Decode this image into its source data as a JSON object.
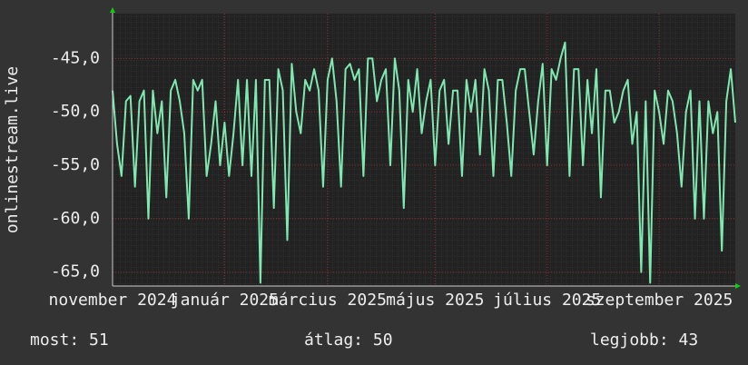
{
  "chart_data": {
    "type": "line",
    "y_label": "onlinestream.live",
    "color": "#7fe8b0",
    "grid": true,
    "ylim": [
      -66.3,
      -40.8
    ],
    "yticks": [
      {
        "value": -45,
        "label": "-45,0"
      },
      {
        "value": -50,
        "label": "-50,0"
      },
      {
        "value": -55,
        "label": "-55,0"
      },
      {
        "value": -60,
        "label": "-60,0"
      },
      {
        "value": -65,
        "label": "-65,0"
      }
    ],
    "categories": [
      "november 2024",
      null,
      null,
      null,
      null,
      null,
      null,
      null,
      null,
      null,
      null,
      null,
      null,
      null,
      null,
      null,
      null,
      null,
      null,
      null,
      null,
      null,
      null,
      null,
      null,
      "január 2025",
      null,
      null,
      null,
      null,
      null,
      null,
      null,
      null,
      null,
      null,
      null,
      null,
      null,
      null,
      null,
      null,
      null,
      null,
      null,
      null,
      null,
      null,
      "március 2025",
      null,
      null,
      null,
      null,
      null,
      null,
      null,
      null,
      null,
      null,
      null,
      null,
      null,
      null,
      null,
      null,
      null,
      null,
      null,
      null,
      null,
      null,
      null,
      "május 2025",
      null,
      null,
      null,
      null,
      null,
      null,
      null,
      null,
      null,
      null,
      null,
      null,
      null,
      null,
      null,
      null,
      null,
      null,
      null,
      null,
      null,
      null,
      null,
      null,
      "július 2025",
      null,
      null,
      null,
      null,
      null,
      null,
      null,
      null,
      null,
      null,
      null,
      null,
      null,
      null,
      null,
      null,
      null,
      null,
      null,
      null,
      null,
      null,
      null,
      null,
      "szeptember 2025",
      null,
      null,
      null,
      null,
      null,
      null,
      null,
      null,
      null,
      null,
      null,
      null,
      null,
      null,
      null,
      null,
      null
    ],
    "values": [
      -48,
      -53,
      -56,
      -49,
      -48.5,
      -57,
      -49,
      -48,
      -60,
      -48,
      -52,
      -49,
      -58,
      -48,
      -47,
      -49,
      -52,
      -60,
      -47,
      -48,
      -47,
      -56,
      -53,
      -49,
      -55,
      -51,
      -56,
      -52,
      -47,
      -55,
      -47,
      -56,
      -47,
      -66,
      -47,
      -47,
      -59,
      -46,
      -48,
      -62,
      -45.5,
      -50,
      -52,
      -47,
      -48,
      -46,
      -48,
      -57,
      -47,
      -45,
      -49,
      -57,
      -46,
      -45.5,
      -47,
      -46,
      -56,
      -45,
      -45,
      -49,
      -47,
      -46,
      -55,
      -45,
      -48,
      -59,
      -47,
      -50,
      -46,
      -52,
      -49,
      -47,
      -55,
      -48,
      -47,
      -53,
      -48,
      -48,
      -56,
      -47,
      -50,
      -47,
      -54,
      -46,
      -48,
      -56,
      -47,
      -47,
      -51,
      -56,
      -48,
      -46,
      -46,
      -50,
      -54,
      -49,
      -45.5,
      -55,
      -46,
      -47,
      -45,
      -43.5,
      -56,
      -46,
      -46,
      -55,
      -47,
      -52,
      -46,
      -58,
      -48,
      -48,
      -51,
      -50,
      -48,
      -47,
      -53,
      -50,
      -65,
      -49,
      -66,
      -48,
      -50,
      -53,
      -48,
      -49,
      -52,
      -57,
      -50,
      -48,
      -60,
      -49,
      -60,
      -49,
      -52,
      -50,
      -63,
      -49,
      -46,
      -51
    ],
    "footer": [
      "most: 51",
      "átlag: 50",
      "legjobb: 43"
    ]
  }
}
